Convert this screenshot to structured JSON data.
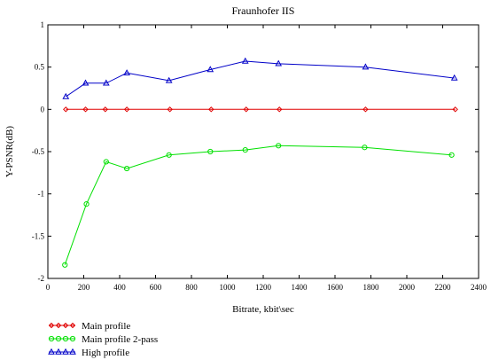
{
  "chart_data": {
    "type": "line",
    "title": "Fraunhofer IIS",
    "xlabel": "Bitrate, kbit\\sec",
    "ylabel": "Y-PSNR(dB)",
    "xlim": [
      0,
      2400
    ],
    "ylim": [
      -2,
      1
    ],
    "xticks": [
      0,
      200,
      400,
      600,
      800,
      1000,
      1200,
      1400,
      1600,
      1800,
      2000,
      2200,
      2400
    ],
    "yticks": [
      -2,
      -1.5,
      -1,
      -0.5,
      0,
      0.5,
      1
    ],
    "xtick_labels": [
      "0",
      "200",
      "400",
      "600",
      "800",
      "1000",
      "1200",
      "1400",
      "1600",
      "1800",
      "2000",
      "2200",
      "2400"
    ],
    "ytick_labels": [
      "-2",
      "-1.5",
      "-1",
      "-0.5",
      "0",
      "0.5",
      "1"
    ],
    "grid": false,
    "legend_position": "bottom-left",
    "series": [
      {
        "name": "Main profile",
        "color": "#e00000",
        "marker": "diamond",
        "x": [
          100,
          210,
          320,
          440,
          680,
          910,
          1105,
          1290,
          1770,
          2270
        ],
        "y": [
          0,
          0,
          0,
          0,
          0,
          0,
          0,
          0,
          0,
          0
        ]
      },
      {
        "name": "Main profile 2-pass",
        "color": "#00e000",
        "marker": "circle",
        "x": [
          95,
          215,
          325,
          440,
          675,
          905,
          1100,
          1285,
          1765,
          2250
        ],
        "y": [
          -1.84,
          -1.12,
          -0.62,
          -0.7,
          -0.54,
          -0.5,
          -0.48,
          -0.43,
          -0.45,
          -0.54
        ]
      },
      {
        "name": "High profile",
        "color": "#0000c8",
        "marker": "triangle",
        "x": [
          100,
          210,
          325,
          440,
          675,
          905,
          1100,
          1285,
          1770,
          2265
        ],
        "y": [
          0.15,
          0.31,
          0.31,
          0.43,
          0.34,
          0.47,
          0.57,
          0.54,
          0.5,
          0.37
        ]
      }
    ]
  }
}
